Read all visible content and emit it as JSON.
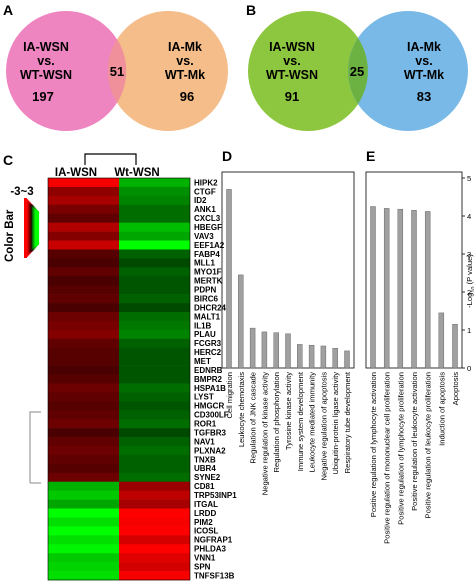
{
  "panels": {
    "a": "A",
    "b": "B",
    "c": "C",
    "d": "D",
    "e": "E"
  },
  "venn_a": {
    "left_label": [
      "IA-WSN",
      "vs.",
      "WT-WSN"
    ],
    "right_label": [
      "IA-Mk",
      "vs.",
      "WT-Mk"
    ],
    "left_count": "197",
    "overlap_count": "51",
    "right_count": "96",
    "colors": {
      "left": "#ee84c0",
      "right": "#f5bd8a",
      "overlap": "#f0909a"
    }
  },
  "venn_b": {
    "left_label": [
      "IA-WSN",
      "vs.",
      "WT-WSN"
    ],
    "right_label": [
      "IA-Mk",
      "vs.",
      "WT-Mk"
    ],
    "left_count": "91",
    "overlap_count": "25",
    "right_count": "83",
    "colors": {
      "left": "#8dc63f",
      "right": "#78b9e8",
      "overlap": "#6cb243"
    }
  },
  "heatmap": {
    "columns": [
      "IA-WSN",
      "Wt-WSN"
    ],
    "color_bar_title": "Color Bar",
    "color_bar_range": "-3~3",
    "genes": [
      "HIPK2",
      "CTGF",
      "ID2",
      "ANK1",
      "CXCL3",
      "HBEGF",
      "VAV3",
      "EEF1A2",
      "FABP4",
      "MLL1",
      "MYO1F",
      "MERTK",
      "PDPN",
      "BIRC6",
      "DHCR24",
      "MALT1",
      "IL1B",
      "PLAU",
      "FCGR3",
      "HERC2",
      "MET",
      "EDNRB",
      "BMPR2",
      "HSPA1B",
      "LYST",
      "HMGCR",
      "CD300LF",
      "ROR1",
      "TGFBR3",
      "NAV1",
      "PLXNA2",
      "TNXB",
      "UBR4",
      "SYNE2",
      "CD81",
      "TRP53INP1",
      "ITGAL",
      "LRDD",
      "PIM2",
      "ICOSL",
      "NGFRAP1",
      "PHLDA3",
      "VNN1",
      "SPN",
      "TNFSF13B"
    ],
    "values": [
      [
        1.8,
        -1.2
      ],
      [
        0.9,
        -0.9
      ],
      [
        1.1,
        -0.8
      ],
      [
        0.7,
        -0.6
      ],
      [
        0.5,
        -0.6
      ],
      [
        1.2,
        -1.3
      ],
      [
        0.8,
        -1.1
      ],
      [
        1.4,
        -2.0
      ],
      [
        0.4,
        -0.5
      ],
      [
        0.3,
        -0.3
      ],
      [
        0.5,
        -0.5
      ],
      [
        0.3,
        -0.4
      ],
      [
        0.4,
        -0.4
      ],
      [
        0.5,
        -0.5
      ],
      [
        0.3,
        -0.3
      ],
      [
        0.6,
        -0.6
      ],
      [
        0.7,
        -0.7
      ],
      [
        0.8,
        -0.8
      ],
      [
        0.5,
        -0.5
      ],
      [
        0.4,
        -0.4
      ],
      [
        0.4,
        -0.4
      ],
      [
        0.3,
        -0.4
      ],
      [
        0.4,
        -0.4
      ],
      [
        0.6,
        -0.6
      ],
      [
        0.5,
        -0.5
      ],
      [
        0.4,
        -0.4
      ],
      [
        0.5,
        -0.5
      ],
      [
        0.6,
        -0.6
      ],
      [
        0.3,
        -0.3
      ],
      [
        0.5,
        -0.5
      ],
      [
        0.6,
        -0.6
      ],
      [
        0.5,
        -0.5
      ],
      [
        0.4,
        -0.5
      ],
      [
        0.6,
        -0.6
      ],
      [
        -1.2,
        1.0
      ],
      [
        -1.4,
        1.3
      ],
      [
        -1.1,
        1.1
      ],
      [
        -2.2,
        2.2
      ],
      [
        -1.6,
        1.8
      ],
      [
        -2.0,
        2.0
      ],
      [
        -1.6,
        1.5
      ],
      [
        -1.8,
        2.0
      ],
      [
        -1.4,
        1.6
      ],
      [
        -1.5,
        1.5
      ],
      [
        -1.6,
        1.8
      ]
    ]
  },
  "chart_data": [
    {
      "type": "bar",
      "panel": "D",
      "categories": [
        "Cell migration",
        "Leukocyte chemotaxis",
        "Regulation of JNK cascade",
        "Negative regulation of kinase activity",
        "Regulation of phosphorylation",
        "Tyrosine kinase activity",
        "Immune system development",
        "Leukocyte mediated immunity",
        "Negative regulation of apoptosis",
        "Ubiquitin-protein ligase activity",
        "Respiratory tube development"
      ],
      "values": [
        4.7,
        2.45,
        1.05,
        0.95,
        0.93,
        0.9,
        0.62,
        0.6,
        0.58,
        0.52,
        0.45
      ],
      "ylim": [
        0,
        5
      ],
      "color": "#a0a0a0"
    },
    {
      "type": "bar",
      "panel": "E",
      "categories": [
        "Positive regulation of lymphocyte activation",
        "Positive regulation of mononuclear cell proliferation",
        "Positive regulation of lymphocyte proliferation",
        "Positive regulation of leukocyte activation",
        "Positive regulation of leukocyte proliferation",
        "Induction of apoptosis",
        "Apoptosis"
      ],
      "values": [
        4.25,
        4.2,
        4.18,
        4.15,
        4.12,
        1.45,
        1.15
      ],
      "ylim": [
        0,
        5
      ],
      "yticks": [
        "0",
        "1",
        "2",
        "3",
        "4",
        "5"
      ],
      "ylabel": "-Log10 (P value)",
      "ylabel_parts": {
        "pre": "-Log",
        "sub": "10",
        "post": " (P value)"
      },
      "color": "#a0a0a0"
    }
  ]
}
